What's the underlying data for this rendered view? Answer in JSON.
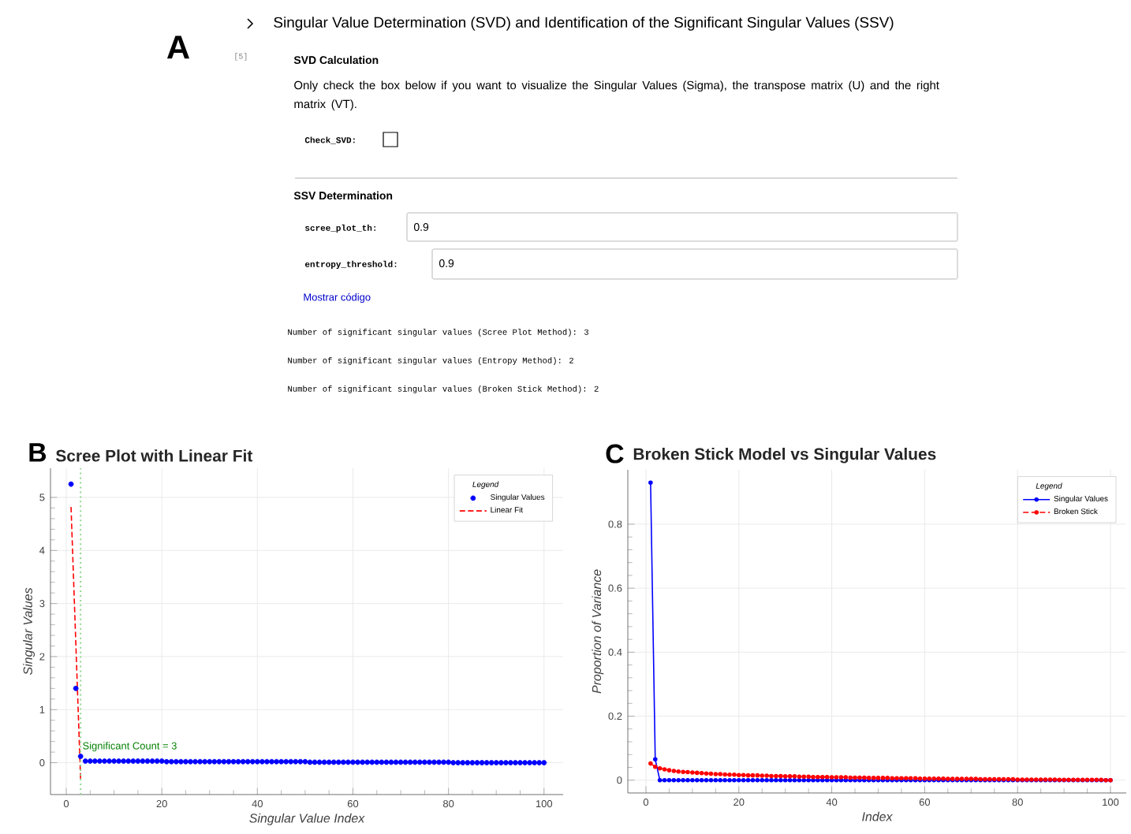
{
  "chart_data": [
    {
      "type": "other",
      "title": "Singular Value Determination (SVD) and Identification of the Significant Singular Values (SSV)",
      "annotations": [
        "A",
        "[5]",
        "SVD Calculation",
        "Only check the box below if you want to visualize the Singular Values (Sigma), the transpose matrix (U) and the right matrix (VT).",
        "Check_SVD:",
        "SSV Determination",
        "scree_plot_th:",
        "0.9",
        "entropy_threshold:",
        "0.9",
        "Mostrar código",
        "Number of significant singular values (Scree Plot Method): 3",
        "Number of significant singular values (Entropy Method): 2",
        "Number of significant singular values (Broken Stick Method): 2"
      ]
    },
    {
      "type": "scatter",
      "title": "Scree Plot with Linear Fit",
      "xlabel": "Singular Value Index",
      "ylabel": "Singular Values",
      "legend_title": "Legend",
      "annotations": [
        "B"
      ],
      "xlim": [
        -3.3,
        104
      ],
      "ylim": [
        -0.6,
        5.55
      ],
      "xticks": [
        0,
        20,
        40,
        60,
        80,
        100
      ],
      "yticks": [
        0,
        1,
        2,
        3,
        4,
        5
      ],
      "grid": true,
      "legend": "top right",
      "series": [
        {
          "name": "Singular Values",
          "type": "scatter",
          "marker": "circle",
          "color": "#0000ff",
          "x": [
            1,
            2,
            3,
            4,
            5,
            6,
            7,
            8,
            9,
            10,
            11,
            12,
            13,
            14,
            15,
            16,
            17,
            18,
            19,
            20,
            21,
            22,
            23,
            24,
            25,
            26,
            27,
            28,
            29,
            30,
            31,
            32,
            33,
            34,
            35,
            36,
            37,
            38,
            39,
            40,
            41,
            42,
            43,
            44,
            45,
            46,
            47,
            48,
            49,
            50,
            51,
            52,
            53,
            54,
            55,
            56,
            57,
            58,
            59,
            60,
            61,
            62,
            63,
            64,
            65,
            66,
            67,
            68,
            69,
            70,
            71,
            72,
            73,
            74,
            75,
            76,
            77,
            78,
            79,
            80,
            81,
            82,
            83,
            84,
            85,
            86,
            87,
            88,
            89,
            90,
            91,
            92,
            93,
            94,
            95,
            96,
            97,
            98,
            99,
            100
          ],
          "values": [
            5.25,
            1.4,
            0.12,
            0.03,
            0.03,
            0.03,
            0.03,
            0.03,
            0.03,
            0.03,
            0.03,
            0.03,
            0.03,
            0.03,
            0.03,
            0.03,
            0.03,
            0.03,
            0.03,
            0.03,
            0.02,
            0.02,
            0.02,
            0.02,
            0.02,
            0.02,
            0.02,
            0.02,
            0.02,
            0.02,
            0.02,
            0.02,
            0.02,
            0.02,
            0.02,
            0.02,
            0.02,
            0.02,
            0.02,
            0.02,
            0.02,
            0.02,
            0.02,
            0.02,
            0.02,
            0.02,
            0.02,
            0.02,
            0.02,
            0.02,
            0.01,
            0.01,
            0.01,
            0.01,
            0.01,
            0.01,
            0.01,
            0.01,
            0.01,
            0.01,
            0.01,
            0.01,
            0.01,
            0.01,
            0.01,
            0.01,
            0.01,
            0.01,
            0.01,
            0.01,
            0.01,
            0.01,
            0.01,
            0.01,
            0.01,
            0.01,
            0.01,
            0.01,
            0.01,
            0.01,
            0.0,
            0.0,
            0.0,
            0.0,
            0.0,
            0.0,
            0.0,
            0.0,
            0.0,
            0.0,
            0.0,
            0.0,
            0.0,
            0.0,
            0.0,
            0.0,
            0.0,
            0.0,
            0.0,
            0.0
          ]
        },
        {
          "name": "Linear Fit",
          "type": "line",
          "marker": "none",
          "line_style": "dashed",
          "color": "#ff0000",
          "x": [
            1,
            2,
            3
          ],
          "values": [
            4.82,
            2.26,
            -0.31
          ]
        }
      ],
      "ref_lines": [
        {
          "axis": "x",
          "value": 3,
          "label": "Significant Count = 3",
          "color": "#8fd68f",
          "line_style": "dotted"
        }
      ]
    },
    {
      "type": "line",
      "title": "Broken Stick Model vs Singular Values",
      "xlabel": "Index",
      "ylabel": "Proportion of Variance",
      "legend_title": "Legend",
      "annotations": [
        "C"
      ],
      "xlim": [
        -3.9,
        103.4
      ],
      "ylim": [
        -0.04,
        0.97
      ],
      "xticks": [
        0,
        20,
        40,
        60,
        80,
        100
      ],
      "yticks": [
        0,
        0.2,
        0.4,
        0.6,
        0.8
      ],
      "grid": true,
      "legend": "top right",
      "series": [
        {
          "name": "Singular Values",
          "type": "line",
          "marker": "circle",
          "line_style": "solid",
          "color": "#0000ff",
          "x": [
            1,
            2,
            3,
            4,
            5,
            6,
            7,
            8,
            9,
            10,
            11,
            12,
            13,
            14,
            15,
            16,
            17,
            18,
            19,
            20,
            21,
            22,
            23,
            24,
            25,
            26,
            27,
            28,
            29,
            30,
            31,
            32,
            33,
            34,
            35,
            36,
            37,
            38,
            39,
            40,
            41,
            42,
            43,
            44,
            45,
            46,
            47,
            48,
            49,
            50,
            51,
            52,
            53,
            54,
            55,
            56,
            57,
            58,
            59,
            60,
            61,
            62,
            63,
            64,
            65,
            66,
            67,
            68,
            69,
            70,
            71,
            72,
            73,
            74,
            75,
            76,
            77,
            78,
            79,
            80,
            81,
            82,
            83,
            84,
            85,
            86,
            87,
            88,
            89,
            90,
            91,
            92,
            93,
            94,
            95,
            96,
            97,
            98,
            99,
            100
          ],
          "values": [
            0.93,
            0.065,
            0.0,
            0.0,
            0.0,
            0.0,
            0.0,
            0.0,
            0.0,
            0.0,
            0.0,
            0.0,
            0.0,
            0.0,
            0.0,
            0.0,
            0.0,
            0.0,
            0.0,
            0.0,
            0.0,
            0.0,
            0.0,
            0.0,
            0.0,
            0.0,
            0.0,
            0.0,
            0.0,
            0.0,
            0.0,
            0.0,
            0.0,
            0.0,
            0.0,
            0.0,
            0.0,
            0.0,
            0.0,
            0.0,
            0.0,
            0.0,
            0.0,
            0.0,
            0.0,
            0.0,
            0.0,
            0.0,
            0.0,
            0.0,
            0.0,
            0.0,
            0.0,
            0.0,
            0.0,
            0.0,
            0.0,
            0.0,
            0.0,
            0.0,
            0.0,
            0.0,
            0.0,
            0.0,
            0.0,
            0.0,
            0.0,
            0.0,
            0.0,
            0.0,
            0.0,
            0.0,
            0.0,
            0.0,
            0.0,
            0.0,
            0.0,
            0.0,
            0.0,
            0.0,
            0.0,
            0.0,
            0.0,
            0.0,
            0.0,
            0.0,
            0.0,
            0.0,
            0.0,
            0.0,
            0.0,
            0.0,
            0.0,
            0.0,
            0.0,
            0.0,
            0.0,
            0.0,
            0.0,
            0.0
          ]
        },
        {
          "name": "Broken Stick",
          "type": "line",
          "marker": "circle",
          "line_style": "dashed",
          "color": "#ff0000",
          "x": [
            1,
            2,
            3,
            4,
            5,
            6,
            7,
            8,
            9,
            10,
            11,
            12,
            13,
            14,
            15,
            16,
            17,
            18,
            19,
            20,
            21,
            22,
            23,
            24,
            25,
            26,
            27,
            28,
            29,
            30,
            31,
            32,
            33,
            34,
            35,
            36,
            37,
            38,
            39,
            40,
            41,
            42,
            43,
            44,
            45,
            46,
            47,
            48,
            49,
            50,
            51,
            52,
            53,
            54,
            55,
            56,
            57,
            58,
            59,
            60,
            61,
            62,
            63,
            64,
            65,
            66,
            67,
            68,
            69,
            70,
            71,
            72,
            73,
            74,
            75,
            76,
            77,
            78,
            79,
            80,
            81,
            82,
            83,
            84,
            85,
            86,
            87,
            88,
            89,
            90,
            91,
            92,
            93,
            94,
            95,
            96,
            97,
            98,
            99,
            100
          ],
          "values": [
            0.052,
            0.042,
            0.037,
            0.034,
            0.031,
            0.029,
            0.027,
            0.026,
            0.025,
            0.024,
            0.023,
            0.022,
            0.021,
            0.02,
            0.019,
            0.019,
            0.018,
            0.017,
            0.017,
            0.016,
            0.016,
            0.015,
            0.015,
            0.015,
            0.014,
            0.014,
            0.013,
            0.013,
            0.013,
            0.012,
            0.012,
            0.012,
            0.011,
            0.011,
            0.011,
            0.01,
            0.01,
            0.01,
            0.01,
            0.009,
            0.009,
            0.009,
            0.009,
            0.008,
            0.008,
            0.008,
            0.008,
            0.007,
            0.007,
            0.007,
            0.007,
            0.007,
            0.006,
            0.006,
            0.006,
            0.006,
            0.006,
            0.006,
            0.005,
            0.005,
            0.005,
            0.005,
            0.005,
            0.005,
            0.004,
            0.004,
            0.004,
            0.004,
            0.004,
            0.004,
            0.004,
            0.003,
            0.003,
            0.003,
            0.003,
            0.003,
            0.003,
            0.003,
            0.003,
            0.002,
            0.002,
            0.002,
            0.002,
            0.002,
            0.002,
            0.002,
            0.002,
            0.002,
            0.001,
            0.001,
            0.001,
            0.001,
            0.001,
            0.001,
            0.001,
            0.001,
            0.001,
            0.001,
            0.0,
            0.0
          ]
        }
      ]
    }
  ]
}
